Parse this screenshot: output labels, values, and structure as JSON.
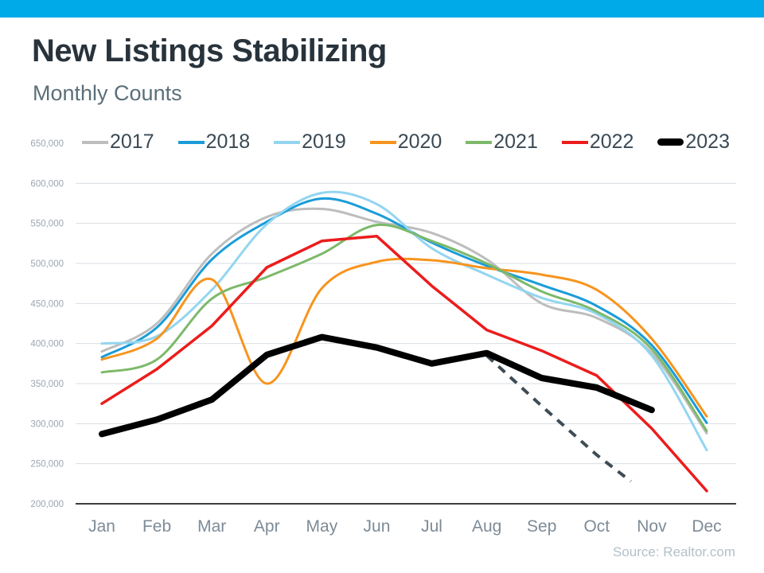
{
  "accent_bar_color": "#00a9e8",
  "header": {
    "title": "New Listings Stabilizing",
    "subtitle": "Monthly Counts"
  },
  "source": "Source: Realtor.com",
  "chart_data": {
    "type": "line",
    "title": "New Listings Stabilizing",
    "subtitle": "Monthly Counts",
    "categories": [
      "Jan",
      "Feb",
      "Mar",
      "Apr",
      "May",
      "Jun",
      "Jul",
      "Aug",
      "Sep",
      "Oct",
      "Nov",
      "Dec"
    ],
    "ylim": [
      200000,
      650000
    ],
    "ytick_step": 50000,
    "ytick_labels": [
      "650,000",
      "600,000",
      "550,000",
      "500,000",
      "450,000",
      "400,000",
      "350,000",
      "300,000",
      "250,000",
      "200,000"
    ],
    "grid": true,
    "legend_position": "top",
    "series": [
      {
        "name": "2017",
        "color": "#bdbdbd",
        "width": 3,
        "smooth": true,
        "values": [
          390000,
          425000,
          512000,
          558000,
          568000,
          552000,
          538000,
          505000,
          450000,
          432000,
          388000,
          288000
        ]
      },
      {
        "name": "2018",
        "color": "#1a9cd8",
        "width": 3,
        "smooth": true,
        "values": [
          383000,
          420000,
          505000,
          552000,
          581000,
          562000,
          526000,
          497000,
          473000,
          447000,
          398000,
          301000
        ]
      },
      {
        "name": "2019",
        "color": "#93d5f0",
        "width": 3,
        "smooth": true,
        "values": [
          400000,
          409000,
          467000,
          549000,
          588000,
          574000,
          519000,
          486000,
          457000,
          437000,
          385000,
          267000
        ]
      },
      {
        "name": "2020",
        "color": "#f7941e",
        "width": 3,
        "smooth": true,
        "values": [
          380000,
          406000,
          480000,
          350000,
          469000,
          502000,
          504000,
          494000,
          486000,
          467000,
          406000,
          309000
        ]
      },
      {
        "name": "2021",
        "color": "#7cb96a",
        "width": 3,
        "smooth": true,
        "values": [
          364000,
          380000,
          456000,
          483000,
          512000,
          548000,
          528000,
          500000,
          465000,
          440000,
          393000,
          291000
        ]
      },
      {
        "name": "2022",
        "color": "#ec1c1c",
        "width": 3.5,
        "smooth": false,
        "values": [
          325000,
          368000,
          422000,
          495000,
          528000,
          534000,
          472000,
          417000,
          391000,
          360000,
          294000,
          216000
        ]
      },
      {
        "name": "2023",
        "color": "#000000",
        "width": 8,
        "smooth": false,
        "values": [
          287000,
          305000,
          330000,
          386000,
          408000,
          395000,
          375000,
          388000,
          357000,
          345000,
          317000,
          null
        ]
      }
    ],
    "projection": {
      "name": "2023-dashed-projection",
      "color": "#3e4c55",
      "width": 4,
      "dash": "11 9",
      "x": [
        7,
        8,
        9,
        9.62
      ],
      "values": [
        385000,
        322000,
        261000,
        228000
      ]
    },
    "axis_colors": {
      "gridline": "#d9dee3",
      "baseline": "#3f3f3f",
      "ytick_text": "#9aa6b3",
      "xtick_text": "#7d8b98"
    }
  }
}
